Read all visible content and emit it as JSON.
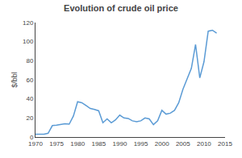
{
  "chart_data": {
    "type": "line",
    "title": "Evolution of crude oil price",
    "ylabel": "$/bbl",
    "x": [
      1970,
      1971,
      1972,
      1973,
      1974,
      1975,
      1976,
      1977,
      1978,
      1979,
      1980,
      1981,
      1982,
      1983,
      1984,
      1985,
      1986,
      1987,
      1988,
      1989,
      1990,
      1991,
      1992,
      1993,
      1994,
      1995,
      1996,
      1997,
      1998,
      1999,
      2000,
      2001,
      2002,
      2003,
      2004,
      2005,
      2006,
      2007,
      2008,
      2009,
      2010,
      2011,
      2012,
      2013
    ],
    "values": [
      3.0,
      3.0,
      3.0,
      4.0,
      12.0,
      12.5,
      13.5,
      14.0,
      13.5,
      22.0,
      37.0,
      36.0,
      33.0,
      30.0,
      29.0,
      27.5,
      15.0,
      19.0,
      15.0,
      18.0,
      23.0,
      20.0,
      19.5,
      17.0,
      16.0,
      17.0,
      20.0,
      19.0,
      13.0,
      17.0,
      28.0,
      24.0,
      25.0,
      28.0,
      36.0,
      50.0,
      61.0,
      72.0,
      97.0,
      62.0,
      79.0,
      111.0,
      112.0,
      109.0
    ],
    "color": "#5b9bd5",
    "xlim": [
      1970,
      2015
    ],
    "ylim": [
      0,
      120
    ],
    "xticks": [
      1970,
      1975,
      1980,
      1985,
      1990,
      1995,
      2000,
      2005,
      2010,
      2015
    ],
    "yticks": [
      0,
      20,
      40,
      60,
      80,
      100,
      120
    ],
    "grid": false
  }
}
